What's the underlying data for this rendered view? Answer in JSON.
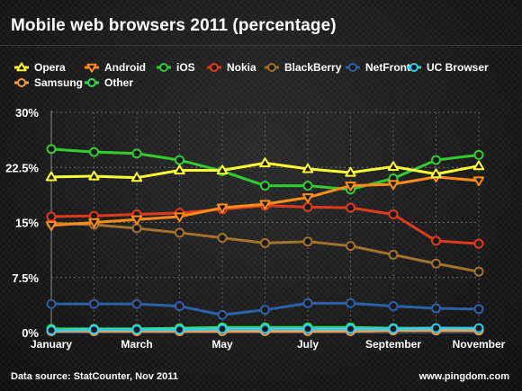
{
  "footer": {
    "source": "Data source: StatCounter, Nov 2011",
    "site": "www.pingdom.com"
  },
  "chart_data": {
    "type": "line",
    "title": "Mobile web browsers 2011 (percentage)",
    "x": [
      "January",
      "February",
      "March",
      "April",
      "May",
      "June",
      "July",
      "August",
      "September",
      "October",
      "November"
    ],
    "x_tick_labels": [
      "January",
      "",
      "March",
      "",
      "May",
      "",
      "July",
      "",
      "September",
      "",
      "November"
    ],
    "y_tick_labels": [
      "0%",
      "7.5%",
      "15%",
      "22.5%",
      "30%"
    ],
    "y_ticks": [
      0,
      7.5,
      15,
      22.5,
      30
    ],
    "ylim": [
      0,
      30
    ],
    "grid": true,
    "legend_position": "top",
    "series": [
      {
        "name": "Opera",
        "color": "#ffff33",
        "marker": "triangle-up",
        "values": [
          21.2,
          21.3,
          21.1,
          22.1,
          22.1,
          23.1,
          22.3,
          21.8,
          22.6,
          21.6,
          22.7
        ]
      },
      {
        "name": "Android",
        "color": "#ff8c1a",
        "marker": "triangle-down",
        "values": [
          14.6,
          15.0,
          15.4,
          15.8,
          17.0,
          17.5,
          18.4,
          20.0,
          20.2,
          21.2,
          20.7
        ]
      },
      {
        "name": "iOS",
        "color": "#33cc33",
        "marker": "circle",
        "values": [
          25.0,
          24.6,
          24.4,
          23.5,
          22.0,
          20.0,
          20.0,
          19.5,
          21.0,
          23.5,
          24.2
        ]
      },
      {
        "name": "Nokia",
        "color": "#e03a1e",
        "marker": "circle",
        "values": [
          15.8,
          15.9,
          16.1,
          16.3,
          16.8,
          17.3,
          17.1,
          17.0,
          16.1,
          12.5,
          12.1
        ]
      },
      {
        "name": "BlackBerry",
        "color": "#a0722e",
        "marker": "circle",
        "values": [
          14.9,
          14.7,
          14.2,
          13.6,
          12.9,
          12.2,
          12.4,
          11.8,
          10.6,
          9.4,
          8.3
        ]
      },
      {
        "name": "NetFront",
        "color": "#2f5fa8",
        "marker": "circle",
        "values": [
          3.9,
          3.9,
          3.9,
          3.6,
          2.4,
          3.1,
          4.0,
          4.0,
          3.6,
          3.3,
          3.2
        ]
      },
      {
        "name": "UC Browser",
        "color": "#33ccee",
        "marker": "circle",
        "values": [
          0.3,
          0.4,
          0.4,
          0.4,
          0.5,
          0.5,
          0.5,
          0.5,
          0.5,
          0.6,
          0.6
        ]
      },
      {
        "name": "Samsung",
        "color": "#f0a050",
        "marker": "circle",
        "values": [
          0.2,
          0.2,
          0.2,
          0.2,
          0.2,
          0.2,
          0.2,
          0.2,
          0.3,
          0.3,
          0.3
        ]
      },
      {
        "name": "Other",
        "color": "#33dd55",
        "marker": "circle",
        "values": [
          0.5,
          0.5,
          0.5,
          0.6,
          0.7,
          0.7,
          0.7,
          0.7,
          0.6,
          0.6,
          0.5
        ]
      }
    ]
  }
}
